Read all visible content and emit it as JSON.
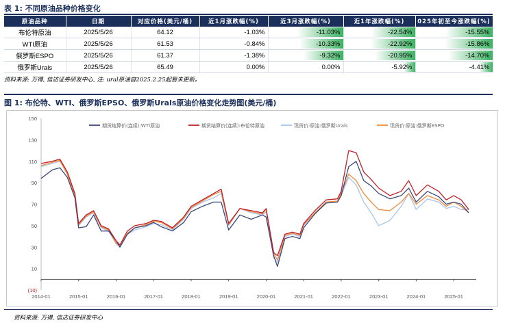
{
  "table": {
    "title": "表 1:  不同原油品种价格变化",
    "headers": [
      "原油品种",
      "日期",
      "对应价格(美元/桶)",
      "近1月涨跌幅(%)",
      "近3月涨跌幅(%)",
      "近1年涨跌幅(%)",
      "025年初至今涨跌幅(%)"
    ],
    "rows": [
      {
        "name": "布伦特原油",
        "date": "2025/5/26",
        "price": "64.12",
        "m1": "-1.03%",
        "m3": "-11.03%",
        "y1": "-22.54%",
        "ytd": "-15.55%"
      },
      {
        "name": "WTI原油",
        "date": "2025/5/26",
        "price": "61.53",
        "m1": "-0.84%",
        "m3": "-10.33%",
        "y1": "-22.92%",
        "ytd": "-15.86%"
      },
      {
        "name": "俄罗斯ESPO",
        "date": "2025/5/26",
        "price": "61.37",
        "m1": "-1.38%",
        "m3": "-9.32%",
        "y1": "-20.95%",
        "ytd": "-14.70%"
      },
      {
        "name": "俄罗斯Urals",
        "date": "2025/5/26",
        "price": "65.49",
        "m1": "0.00%",
        "m3": "0.00%",
        "y1": "-5.92%",
        "ytd": "-4.41%"
      }
    ],
    "bar_fractions": {
      "m3": [
        1.0,
        0.94,
        0.85,
        0.0
      ],
      "y1": [
        0.98,
        1.0,
        0.91,
        0.26
      ],
      "ytd": [
        0.98,
        1.0,
        0.93,
        0.28
      ]
    },
    "source": "资料来源: 万得, 信达证券研发中心, 注: ural原油自2025.2.25起暂未更新。"
  },
  "figure": {
    "title": "图 1:  布伦特、WTI、俄罗斯EPSO、俄罗斯Urals原油价格变化走势图(美元/桶)",
    "source": "资料来源: 万得, 信达证券研发中心"
  },
  "chart_data": {
    "type": "line",
    "ylim": [
      -10,
      150
    ],
    "yticks": [
      "(10)",
      "10",
      "30",
      "50",
      "70",
      "90",
      "110",
      "130",
      "150"
    ],
    "ytick_values": [
      -10,
      10,
      30,
      50,
      70,
      90,
      110,
      130,
      150
    ],
    "xticks": [
      "2014-01",
      "2015-01",
      "2016-01",
      "2017-01",
      "2018-01",
      "2019-01",
      "2020-01",
      "2021-01",
      "2022-01",
      "2023-01",
      "2024-01",
      "2025-01"
    ],
    "x": [
      2014.0,
      2014.3,
      2014.5,
      2014.7,
      2014.9,
      2015.0,
      2015.2,
      2015.4,
      2015.6,
      2015.8,
      2016.0,
      2016.1,
      2016.3,
      2016.5,
      2016.8,
      2017.0,
      2017.2,
      2017.5,
      2017.8,
      2018.0,
      2018.3,
      2018.6,
      2018.8,
      2019.0,
      2019.3,
      2019.6,
      2019.9,
      2020.0,
      2020.2,
      2020.3,
      2020.5,
      2020.7,
      2020.9,
      2021.0,
      2021.3,
      2021.6,
      2021.9,
      2022.0,
      2022.2,
      2022.4,
      2022.6,
      2022.8,
      2023.0,
      2023.3,
      2023.6,
      2023.8,
      2024.0,
      2024.3,
      2024.6,
      2024.8,
      2025.0,
      2025.2,
      2025.4
    ],
    "series": [
      {
        "name": "期货结算价(连续):WTI原油",
        "color": "#3b4a7a",
        "values": [
          94,
          102,
          104,
          95,
          76,
          48,
          49,
          60,
          45,
          45,
          36,
          30,
          42,
          48,
          50,
          53,
          49,
          45,
          53,
          63,
          68,
          72,
          72,
          46,
          60,
          56,
          60,
          58,
          22,
          12,
          38,
          40,
          38,
          48,
          61,
          71,
          72,
          78,
          105,
          110,
          92,
          87,
          80,
          75,
          78,
          85,
          72,
          82,
          77,
          70,
          72,
          70,
          62
        ]
      },
      {
        "name": "期货结算价(连续):布伦特原油",
        "color": "#c0202a",
        "values": [
          108,
          110,
          112,
          100,
          80,
          52,
          60,
          64,
          50,
          47,
          36,
          32,
          45,
          50,
          52,
          55,
          54,
          48,
          58,
          68,
          74,
          80,
          84,
          52,
          66,
          64,
          62,
          66,
          25,
          22,
          42,
          44,
          42,
          52,
          64,
          74,
          75,
          82,
          120,
          118,
          100,
          93,
          85,
          78,
          82,
          92,
          78,
          88,
          82,
          74,
          78,
          74,
          65
        ]
      },
      {
        "name": "现货价:原油:俄罗斯Urals",
        "color": "#a9c4ee",
        "values": [
          105,
          108,
          110,
          98,
          78,
          50,
          58,
          62,
          48,
          45,
          33,
          30,
          42,
          46,
          49,
          52,
          51,
          46,
          56,
          66,
          72,
          76,
          80,
          50,
          66,
          62,
          60,
          63,
          20,
          16,
          40,
          42,
          40,
          50,
          62,
          72,
          72,
          78,
          95,
          88,
          72,
          62,
          50,
          55,
          68,
          80,
          65,
          75,
          72,
          66,
          68,
          65,
          65
        ]
      },
      {
        "name": "现货价:原油:俄罗斯ESPO",
        "color": "#ee8a3a",
        "values": [
          106,
          109,
          111,
          98,
          78,
          51,
          59,
          63,
          49,
          46,
          34,
          31,
          43,
          48,
          51,
          54,
          53,
          47,
          57,
          67,
          73,
          79,
          82,
          51,
          66,
          63,
          61,
          65,
          24,
          18,
          41,
          43,
          41,
          51,
          62,
          72,
          73,
          80,
          98,
          92,
          80,
          72,
          65,
          64,
          72,
          80,
          70,
          78,
          74,
          68,
          72,
          68,
          62
        ]
      }
    ]
  }
}
